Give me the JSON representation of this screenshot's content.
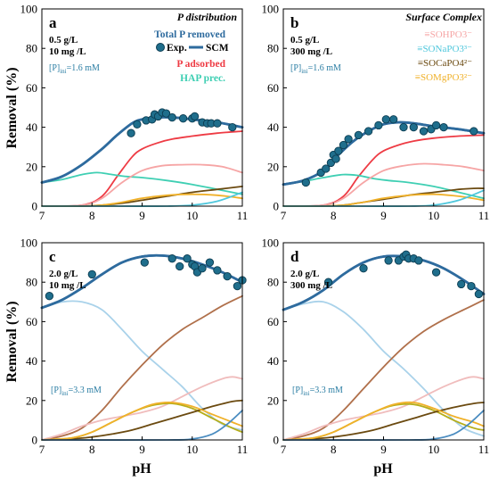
{
  "figure": {
    "y_axis_label": "Removal (%)",
    "x_axis_label": "pH"
  },
  "colors": {
    "total": "#2e6b9e",
    "exp": "#1f6e8c",
    "adsorbed": "#ee3b44",
    "hap": "#3fcfb3",
    "sohpo3": "#f6a5a5",
    "sonapo3": "#4fc7dc",
    "socapo4": "#6b4a10",
    "somgpo3": "#f0b12a",
    "brown": "#b0704b",
    "olive": "#b5ad1a",
    "lightpink": "#f0bcbc",
    "steel": "#4a8cc0"
  },
  "chart_data": [
    {
      "type": "line",
      "panel": "a",
      "conditions": [
        "0.5 g/L",
        "10 mg /L"
      ],
      "p_initial": "[P]ini=1.6 mM",
      "annotation_title": "P distribution",
      "annotations": [
        {
          "text": "Total P removed",
          "color": "#2e6b9e"
        },
        {
          "text": "Exp.",
          "color": "#000000"
        },
        {
          "text": "SCM",
          "color": "#000000"
        },
        {
          "text": "P adsorbed",
          "color": "#ee3b44"
        },
        {
          "text": "HAP prec.",
          "color": "#3fcfb3"
        }
      ],
      "xlabel": "",
      "ylabel": "Removal (%)",
      "xlim": [
        7,
        11
      ],
      "ylim": [
        0,
        100
      ],
      "xticks": [
        7,
        8,
        9,
        10,
        11
      ],
      "yticks": [
        0,
        20,
        40,
        60,
        80,
        100
      ],
      "scatter": {
        "name": "Exp.",
        "x": [
          8.78,
          8.9,
          9.08,
          9.2,
          9.25,
          9.32,
          9.4,
          9.48,
          9.6,
          9.82,
          10.0,
          10.05,
          10.2,
          10.3,
          10.38,
          10.5,
          10.8
        ],
        "y": [
          37,
          41.5,
          43.5,
          44,
          46.5,
          45.5,
          47.5,
          47,
          45,
          44.5,
          44.5,
          45.5,
          42.5,
          42,
          42,
          42,
          40
        ]
      },
      "series": [
        {
          "name": "Total P removed",
          "color": "#2e6b9e",
          "x": [
            7,
            7.4,
            7.8,
            8.2,
            8.5,
            8.8,
            9.0,
            9.3,
            9.6,
            10.0,
            10.5,
            11
          ],
          "y": [
            12,
            15,
            21,
            29,
            36,
            42,
            44,
            45,
            45,
            44,
            42.5,
            40
          ]
        },
        {
          "name": "P adsorbed",
          "color": "#ee3b44",
          "x": [
            7,
            7.8,
            8.2,
            8.5,
            8.8,
            9.0,
            9.3,
            9.6,
            10.0,
            10.5,
            11
          ],
          "y": [
            0,
            0.5,
            5,
            15,
            25,
            29,
            32,
            34,
            35.5,
            37,
            38
          ]
        },
        {
          "name": "HAP prec.",
          "color": "#3fcfb3",
          "x": [
            7,
            7.4,
            7.8,
            8.1,
            8.4,
            8.7,
            9.0,
            9.5,
            10.0,
            10.5,
            11
          ],
          "y": [
            12,
            13.5,
            16,
            17,
            16,
            15,
            14.5,
            13,
            11,
            8.5,
            6
          ]
        },
        {
          "name": "",
          "color": "#f6a5a5",
          "x": [
            7,
            7.8,
            8.2,
            8.6,
            9.0,
            9.4,
            9.8,
            10.2,
            10.6,
            11
          ],
          "y": [
            0,
            0.5,
            4,
            12,
            18,
            20.5,
            21,
            21,
            20,
            17
          ]
        },
        {
          "name": "",
          "color": "#6b4a10",
          "x": [
            7,
            7.8,
            8.2,
            8.6,
            9.0,
            9.5,
            10.0,
            10.5,
            11
          ],
          "y": [
            0,
            0,
            0.5,
            1.5,
            3,
            5,
            7,
            8.5,
            10
          ]
        },
        {
          "name": "",
          "color": "#f0b12a",
          "x": [
            7,
            7.8,
            8.2,
            8.6,
            9.0,
            9.5,
            10.0,
            10.5,
            11
          ],
          "y": [
            0,
            0,
            0.5,
            2,
            4,
            5.5,
            6,
            5.5,
            4
          ]
        },
        {
          "name": "",
          "color": "#4fc7dc",
          "x": [
            7,
            8.5,
            9.5,
            10.0,
            10.5,
            11
          ],
          "y": [
            0,
            0,
            0,
            0.5,
            2.5,
            7
          ]
        }
      ]
    },
    {
      "type": "line",
      "panel": "b",
      "conditions": [
        "0.5 g/L",
        "300 mg /L"
      ],
      "p_initial": "[P]ini=1.6 mM",
      "annotation_title": "Surface Complex",
      "annotations": [
        {
          "text": "≡SOHPO3⁻",
          "color": "#f6a5a5"
        },
        {
          "text": "≡SONaPO3³⁻",
          "color": "#4fc7dc"
        },
        {
          "text": "≡SOCaPO4²⁻",
          "color": "#6b4a10"
        },
        {
          "text": "≡SOMgPO3²⁻",
          "color": "#f0b12a"
        }
      ],
      "xlabel": "",
      "ylabel": "",
      "xlim": [
        7,
        11
      ],
      "ylim": [
        0,
        100
      ],
      "xticks": [
        7,
        8,
        9,
        10,
        11
      ],
      "yticks": [
        0,
        20,
        40,
        60,
        80,
        100
      ],
      "scatter": {
        "name": "Exp.",
        "x": [
          7.45,
          7.75,
          7.85,
          7.95,
          8.0,
          8.05,
          8.1,
          8.2,
          8.3,
          8.5,
          8.7,
          8.9,
          9.05,
          9.2,
          9.4,
          9.6,
          9.8,
          9.95,
          10.05,
          10.2,
          10.8
        ],
        "y": [
          12,
          17,
          19,
          22,
          26,
          24,
          28,
          31,
          34,
          36,
          38,
          41,
          44,
          44,
          40,
          40,
          38,
          39,
          41,
          40,
          38
        ]
      },
      "series": [
        {
          "name": "",
          "color": "#2e6b9e",
          "x": [
            7,
            7.4,
            7.8,
            8.1,
            8.4,
            8.7,
            9.0,
            9.3,
            9.6,
            10.0,
            10.5,
            11
          ],
          "y": [
            11,
            13,
            18,
            26,
            33,
            38,
            41.5,
            42.5,
            42,
            40.5,
            39,
            37
          ]
        },
        {
          "name": "",
          "color": "#ee3b44",
          "x": [
            7,
            7.8,
            8.2,
            8.5,
            8.8,
            9.0,
            9.3,
            9.6,
            10.0,
            10.5,
            11
          ],
          "y": [
            0,
            0.5,
            5,
            15,
            24,
            28,
            31,
            33,
            34.5,
            35.5,
            36
          ]
        },
        {
          "name": "",
          "color": "#3fcfb3",
          "x": [
            7,
            7.4,
            7.8,
            8.2,
            8.5,
            8.8,
            9.1,
            9.5,
            10.0,
            10.5,
            11
          ],
          "y": [
            11,
            12.5,
            14.5,
            16,
            15.5,
            14,
            13,
            12,
            10,
            7,
            4
          ]
        },
        {
          "name": "",
          "color": "#f6a5a5",
          "x": [
            7,
            7.8,
            8.2,
            8.6,
            9.0,
            9.4,
            9.8,
            10.2,
            10.6,
            11
          ],
          "y": [
            0,
            0.5,
            4,
            12,
            18,
            20.5,
            21.5,
            21,
            20,
            18
          ]
        },
        {
          "name": "",
          "color": "#6b4a10",
          "x": [
            7,
            7.8,
            8.2,
            8.6,
            9.0,
            9.5,
            10.0,
            10.5,
            10.8,
            11
          ],
          "y": [
            0,
            0,
            0.5,
            2,
            3.5,
            5.5,
            7,
            8.5,
            9,
            9
          ]
        },
        {
          "name": "",
          "color": "#f0b12a",
          "x": [
            7,
            7.8,
            8.2,
            8.6,
            9.0,
            9.5,
            10.0,
            10.5,
            11
          ],
          "y": [
            0,
            0,
            0.5,
            2,
            4,
            5.5,
            6,
            5,
            3
          ]
        },
        {
          "name": "",
          "color": "#4fc7dc",
          "x": [
            7,
            8.5,
            9.5,
            10.0,
            10.5,
            11
          ],
          "y": [
            0,
            0,
            0,
            0.5,
            3,
            8
          ]
        }
      ]
    },
    {
      "type": "line",
      "panel": "c",
      "conditions": [
        "2.0 g/L",
        "10 mg /L"
      ],
      "p_initial": "[P]ini=3.3 mM",
      "xlabel": "pH",
      "ylabel": "Removal (%)",
      "xlim": [
        7,
        11
      ],
      "ylim": [
        0,
        100
      ],
      "xticks": [
        7,
        8,
        9,
        10,
        11
      ],
      "yticks": [
        0,
        20,
        40,
        60,
        80,
        100
      ],
      "scatter": {
        "name": "Exp.",
        "x": [
          7.15,
          8.0,
          9.05,
          9.6,
          9.75,
          9.9,
          10.0,
          10.05,
          10.1,
          10.2,
          10.35,
          10.5,
          10.7,
          10.9,
          11.0
        ],
        "y": [
          73,
          84,
          90,
          92,
          88,
          92,
          89,
          88,
          85,
          87,
          90,
          86,
          83,
          78,
          81
        ]
      },
      "series": [
        {
          "name": "",
          "color": "#2e6b9e",
          "x": [
            7,
            7.4,
            7.8,
            8.2,
            8.6,
            9.0,
            9.4,
            9.8,
            10.2,
            10.6,
            11
          ],
          "y": [
            67,
            71,
            77,
            84,
            90,
            93,
            93.5,
            92,
            89,
            85,
            80
          ]
        },
        {
          "name": "",
          "color": "#a9d2ea",
          "x": [
            7,
            7.4,
            7.8,
            8.2,
            8.6,
            9.0,
            9.4,
            9.8,
            10.2,
            10.6,
            11
          ],
          "y": [
            67,
            70,
            70,
            66,
            56,
            45,
            36,
            27,
            16,
            8,
            5
          ]
        },
        {
          "name": "",
          "color": "#b0704b",
          "x": [
            7,
            7.4,
            7.8,
            8.2,
            8.6,
            9.0,
            9.4,
            9.8,
            10.2,
            10.6,
            11
          ],
          "y": [
            0,
            2,
            6,
            15,
            27,
            38,
            48,
            56,
            62,
            68,
            73
          ]
        },
        {
          "name": "",
          "color": "#f0bcbc",
          "x": [
            7,
            7.4,
            7.8,
            8.2,
            8.6,
            9.0,
            9.4,
            9.8,
            10.2,
            10.6,
            10.8,
            11
          ],
          "y": [
            0,
            3,
            7,
            10,
            12,
            14,
            17,
            22,
            27,
            31,
            32,
            31
          ]
        },
        {
          "name": "",
          "color": "#b5ad1a",
          "x": [
            7,
            7.6,
            8.0,
            8.4,
            8.8,
            9.2,
            9.6,
            10.0,
            10.4,
            10.8,
            11
          ],
          "y": [
            0,
            1,
            4,
            9,
            14,
            17.5,
            18.5,
            16,
            11,
            6,
            4
          ]
        },
        {
          "name": "",
          "color": "#6b4a10",
          "x": [
            7,
            7.6,
            8.0,
            8.4,
            8.8,
            9.2,
            9.6,
            10.0,
            10.4,
            10.8,
            11
          ],
          "y": [
            0,
            0.5,
            1.5,
            3,
            5,
            8,
            11,
            14,
            17,
            19.5,
            20
          ]
        },
        {
          "name": "",
          "color": "#f0b12a",
          "x": [
            7,
            7.6,
            8.0,
            8.4,
            8.8,
            9.2,
            9.6,
            10.0,
            10.4,
            10.8,
            11
          ],
          "y": [
            0,
            1,
            4,
            9,
            14,
            18,
            19,
            17,
            13,
            9,
            7
          ]
        },
        {
          "name": "",
          "color": "#4a8cc0",
          "x": [
            7,
            9.5,
            10.0,
            10.4,
            10.7,
            11
          ],
          "y": [
            0,
            0,
            0.5,
            3,
            8,
            15
          ]
        }
      ]
    },
    {
      "type": "line",
      "panel": "d",
      "conditions": [
        "2.0 g/L",
        "300 mg /L"
      ],
      "p_initial": "[P]ini=3.3 mM",
      "xlabel": "pH",
      "ylabel": "",
      "xlim": [
        7,
        11
      ],
      "ylim": [
        0,
        100
      ],
      "xticks": [
        7,
        8,
        9,
        10,
        11
      ],
      "yticks": [
        0,
        20,
        40,
        60,
        80,
        100
      ],
      "scatter": {
        "name": "Exp.",
        "x": [
          7.9,
          8.6,
          9.1,
          9.3,
          9.4,
          9.45,
          9.5,
          9.6,
          9.7,
          10.05,
          10.55,
          10.75,
          10.9
        ],
        "y": [
          80,
          87,
          91,
          91,
          93,
          94,
          92,
          92,
          91,
          85,
          79,
          78,
          74
        ]
      },
      "series": [
        {
          "name": "",
          "color": "#2e6b9e",
          "x": [
            7,
            7.4,
            7.8,
            8.2,
            8.6,
            9.0,
            9.4,
            9.8,
            10.2,
            10.6,
            11
          ],
          "y": [
            66,
            70,
            76,
            84,
            90,
            93,
            93,
            91,
            87,
            81,
            74
          ]
        },
        {
          "name": "",
          "color": "#a9d2ea",
          "x": [
            7,
            7.4,
            7.8,
            8.2,
            8.6,
            9.0,
            9.4,
            9.8,
            10.2,
            10.6,
            11
          ],
          "y": [
            66,
            69,
            70,
            65,
            56,
            45,
            36,
            26,
            15,
            6,
            2
          ]
        },
        {
          "name": "",
          "color": "#b0704b",
          "x": [
            7,
            7.4,
            7.8,
            8.2,
            8.6,
            9.0,
            9.4,
            9.8,
            10.2,
            10.6,
            11
          ],
          "y": [
            0,
            2,
            6,
            15,
            26,
            37,
            47,
            55,
            61,
            66,
            71
          ]
        },
        {
          "name": "",
          "color": "#f0bcbc",
          "x": [
            7,
            7.4,
            7.8,
            8.2,
            8.6,
            9.0,
            9.4,
            9.8,
            10.2,
            10.6,
            10.8,
            11
          ],
          "y": [
            0,
            3,
            7,
            10,
            12,
            14,
            17,
            22,
            27,
            31,
            32,
            31
          ]
        },
        {
          "name": "",
          "color": "#b5ad1a",
          "x": [
            7,
            7.6,
            8.0,
            8.4,
            8.8,
            9.2,
            9.6,
            10.0,
            10.4,
            10.8,
            11
          ],
          "y": [
            0,
            1,
            4,
            9,
            14,
            17.5,
            18,
            15,
            10,
            6,
            5
          ]
        },
        {
          "name": "",
          "color": "#6b4a10",
          "x": [
            7,
            7.6,
            8.0,
            8.4,
            8.8,
            9.2,
            9.6,
            10.0,
            10.4,
            10.8,
            11
          ],
          "y": [
            0,
            0.5,
            1.5,
            3,
            5,
            8,
            11,
            14,
            16.5,
            18.5,
            19
          ]
        },
        {
          "name": "",
          "color": "#f0b12a",
          "x": [
            7,
            7.6,
            8.0,
            8.4,
            8.8,
            9.2,
            9.6,
            10.0,
            10.4,
            10.8,
            11
          ],
          "y": [
            0,
            1,
            4,
            9,
            14,
            18,
            19,
            16,
            12,
            9,
            7
          ]
        },
        {
          "name": "",
          "color": "#4a8cc0",
          "x": [
            7,
            9.5,
            10.0,
            10.4,
            10.7,
            11
          ],
          "y": [
            0,
            0,
            0.5,
            3,
            8,
            15
          ]
        }
      ]
    }
  ]
}
